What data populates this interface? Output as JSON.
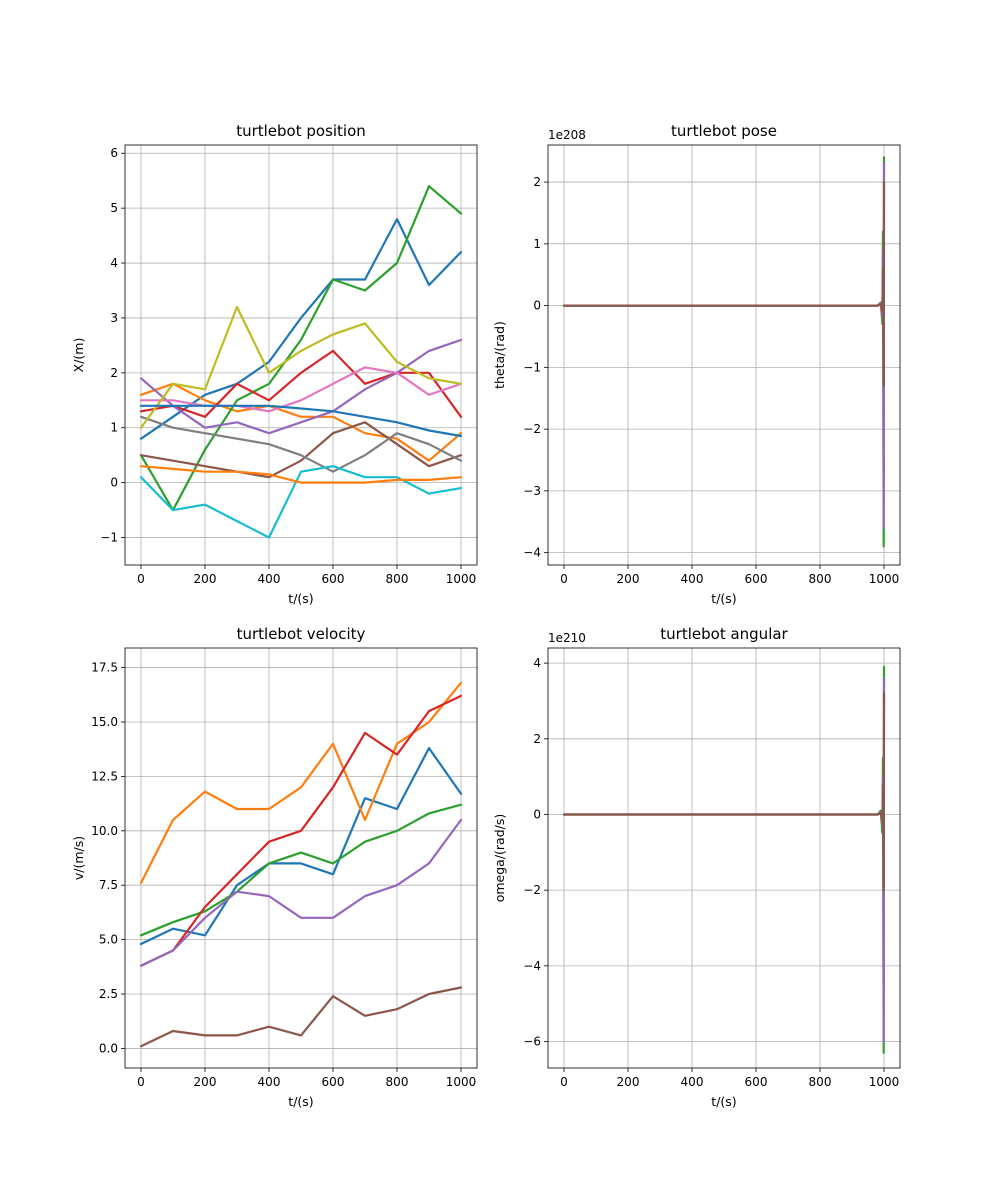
{
  "chart_data": [
    {
      "type": "line",
      "title": "turtlebot position",
      "xlabel": "t/(s)",
      "ylabel": "X/(m)",
      "xlim": [
        -50,
        1050
      ],
      "ylim": [
        -1.5,
        6.15
      ],
      "xticks": [
        0,
        200,
        400,
        600,
        800,
        1000
      ],
      "yticks": [
        -1,
        0,
        1,
        2,
        3,
        4,
        5,
        6
      ],
      "xtick_labels": [
        "0",
        "200",
        "400",
        "600",
        "800",
        "1000"
      ],
      "ytick_labels": [
        "−1",
        "0",
        "1",
        "2",
        "3",
        "4",
        "5",
        "6"
      ],
      "offset_label": "",
      "grid": true,
      "legend": "none",
      "x": [
        0,
        100,
        200,
        300,
        400,
        500,
        600,
        700,
        800,
        900,
        1000
      ],
      "series": [
        {
          "color": "#1f77b4",
          "values": [
            0.8,
            1.2,
            1.6,
            1.8,
            2.2,
            3.0,
            3.7,
            3.7,
            4.8,
            3.6,
            4.2
          ]
        },
        {
          "color": "#ff7f0e",
          "values": [
            1.6,
            1.8,
            1.5,
            1.3,
            1.4,
            1.2,
            1.2,
            0.9,
            0.8,
            0.4,
            0.9
          ]
        },
        {
          "color": "#2ca02c",
          "values": [
            0.5,
            -0.5,
            0.6,
            1.5,
            1.8,
            2.6,
            3.7,
            3.5,
            4.0,
            5.4,
            4.9
          ]
        },
        {
          "color": "#d62728",
          "values": [
            1.3,
            1.4,
            1.2,
            1.8,
            1.5,
            2.0,
            2.4,
            1.8,
            2.0,
            2.0,
            1.2
          ]
        },
        {
          "color": "#9467bd",
          "values": [
            1.9,
            1.4,
            1.0,
            1.1,
            0.9,
            1.1,
            1.3,
            1.7,
            2.0,
            2.4,
            2.6
          ]
        },
        {
          "color": "#8c564b",
          "values": [
            0.5,
            0.4,
            0.3,
            0.2,
            0.1,
            0.4,
            0.9,
            1.1,
            0.7,
            0.3,
            0.5
          ]
        },
        {
          "color": "#e377c2",
          "values": [
            1.5,
            1.5,
            1.4,
            1.4,
            1.3,
            1.5,
            1.8,
            2.1,
            2.0,
            1.6,
            1.8
          ]
        },
        {
          "color": "#7f7f7f",
          "values": [
            1.2,
            1.0,
            0.9,
            0.8,
            0.7,
            0.5,
            0.2,
            0.5,
            0.9,
            0.7,
            0.4
          ]
        },
        {
          "color": "#bcbd22",
          "values": [
            1.0,
            1.8,
            1.7,
            3.2,
            2.0,
            2.4,
            2.7,
            2.9,
            2.2,
            1.9,
            1.8
          ]
        },
        {
          "color": "#17becf",
          "values": [
            0.1,
            -0.5,
            -0.4,
            -0.7,
            -1.0,
            0.2,
            0.3,
            0.1,
            0.1,
            -0.2,
            -0.1
          ]
        },
        {
          "color": "#1f77b4",
          "values": [
            1.4,
            1.4,
            1.4,
            1.4,
            1.4,
            1.35,
            1.3,
            1.2,
            1.1,
            0.95,
            0.85
          ]
        },
        {
          "color": "#ff7f0e",
          "values": [
            0.3,
            0.25,
            0.2,
            0.2,
            0.15,
            0.0,
            0.0,
            0.0,
            0.05,
            0.05,
            0.1
          ]
        }
      ]
    },
    {
      "type": "line",
      "title": "turtlebot pose",
      "xlabel": "t/(s)",
      "ylabel": "theta/(rad)",
      "xlim": [
        -50,
        1050
      ],
      "ylim": [
        -4.2,
        2.6
      ],
      "xticks": [
        0,
        200,
        400,
        600,
        800,
        1000
      ],
      "yticks": [
        -4,
        -3,
        -2,
        -1,
        0,
        1,
        2
      ],
      "xtick_labels": [
        "0",
        "200",
        "400",
        "600",
        "800",
        "1000"
      ],
      "ytick_labels": [
        "−4",
        "−3",
        "−2",
        "−1",
        "0",
        "1",
        "2"
      ],
      "offset_label": "1e208",
      "grid": true,
      "legend": "none",
      "x": [
        0,
        980,
        990,
        995,
        997,
        999,
        1000
      ],
      "series": [
        {
          "color": "#2ca02c",
          "values": [
            0,
            0,
            0.05,
            -0.3,
            1.2,
            -3.9,
            2.4
          ]
        },
        {
          "color": "#9467bd",
          "values": [
            0,
            0,
            0.03,
            -0.2,
            0.9,
            -3.6,
            2.3
          ]
        },
        {
          "color": "#8c564b",
          "values": [
            0,
            0,
            0.02,
            -0.1,
            0.6,
            -1.3,
            2.0
          ]
        }
      ]
    },
    {
      "type": "line",
      "title": "turtlebot velocity",
      "xlabel": "t/(s)",
      "ylabel": "v/(m/s)",
      "xlim": [
        -50,
        1050
      ],
      "ylim": [
        -0.9,
        18.4
      ],
      "xticks": [
        0,
        200,
        400,
        600,
        800,
        1000
      ],
      "yticks": [
        0,
        2.5,
        5,
        7.5,
        10,
        12.5,
        15,
        17.5
      ],
      "xtick_labels": [
        "0",
        "200",
        "400",
        "600",
        "800",
        "1000"
      ],
      "ytick_labels": [
        "0.0",
        "2.5",
        "5.0",
        "7.5",
        "10.0",
        "12.5",
        "15.0",
        "17.5"
      ],
      "offset_label": "",
      "grid": true,
      "legend": "none",
      "x": [
        0,
        100,
        200,
        300,
        400,
        500,
        600,
        700,
        800,
        900,
        1000
      ],
      "series": [
        {
          "color": "#1f77b4",
          "values": [
            4.8,
            5.5,
            5.2,
            7.5,
            8.5,
            8.5,
            8.0,
            11.5,
            11.0,
            13.8,
            11.7
          ]
        },
        {
          "color": "#ff7f0e",
          "values": [
            7.6,
            10.5,
            11.8,
            11.0,
            11.0,
            12.0,
            14.0,
            10.5,
            14.0,
            15.0,
            16.8
          ]
        },
        {
          "color": "#2ca02c",
          "values": [
            5.2,
            5.8,
            6.3,
            7.2,
            8.5,
            9.0,
            8.5,
            9.5,
            10.0,
            10.8,
            11.2
          ]
        },
        {
          "color": "#d62728",
          "values": [
            3.8,
            4.5,
            6.5,
            8.0,
            9.5,
            10.0,
            12.0,
            14.5,
            13.5,
            15.5,
            16.2
          ]
        },
        {
          "color": "#9467bd",
          "values": [
            3.8,
            4.5,
            6.0,
            7.2,
            7.0,
            6.0,
            6.0,
            7.0,
            7.5,
            8.5,
            10.5
          ]
        },
        {
          "color": "#8c564b",
          "values": [
            0.1,
            0.8,
            0.6,
            0.6,
            1.0,
            0.6,
            2.4,
            1.5,
            1.8,
            2.5,
            2.8
          ]
        }
      ]
    },
    {
      "type": "line",
      "title": "turtlebot angular",
      "xlabel": "t/(s)",
      "ylabel": "omega/(rad/s)",
      "xlim": [
        -50,
        1050
      ],
      "ylim": [
        -6.7,
        4.4
      ],
      "xticks": [
        0,
        200,
        400,
        600,
        800,
        1000
      ],
      "yticks": [
        -6,
        -4,
        -2,
        0,
        2,
        4
      ],
      "xtick_labels": [
        "0",
        "200",
        "400",
        "600",
        "800",
        "1000"
      ],
      "ytick_labels": [
        "−6",
        "−4",
        "−2",
        "0",
        "2",
        "4"
      ],
      "offset_label": "1e210",
      "grid": true,
      "legend": "none",
      "x": [
        0,
        980,
        990,
        995,
        997,
        999,
        1000
      ],
      "series": [
        {
          "color": "#2ca02c",
          "values": [
            0,
            0,
            0.1,
            -0.5,
            1.5,
            -6.3,
            3.9
          ]
        },
        {
          "color": "#9467bd",
          "values": [
            0,
            0,
            0.05,
            -0.3,
            1.0,
            -6.0,
            3.6
          ]
        },
        {
          "color": "#8c564b",
          "values": [
            0,
            0,
            0.03,
            -0.2,
            0.8,
            -2.0,
            3.2
          ]
        }
      ]
    }
  ]
}
